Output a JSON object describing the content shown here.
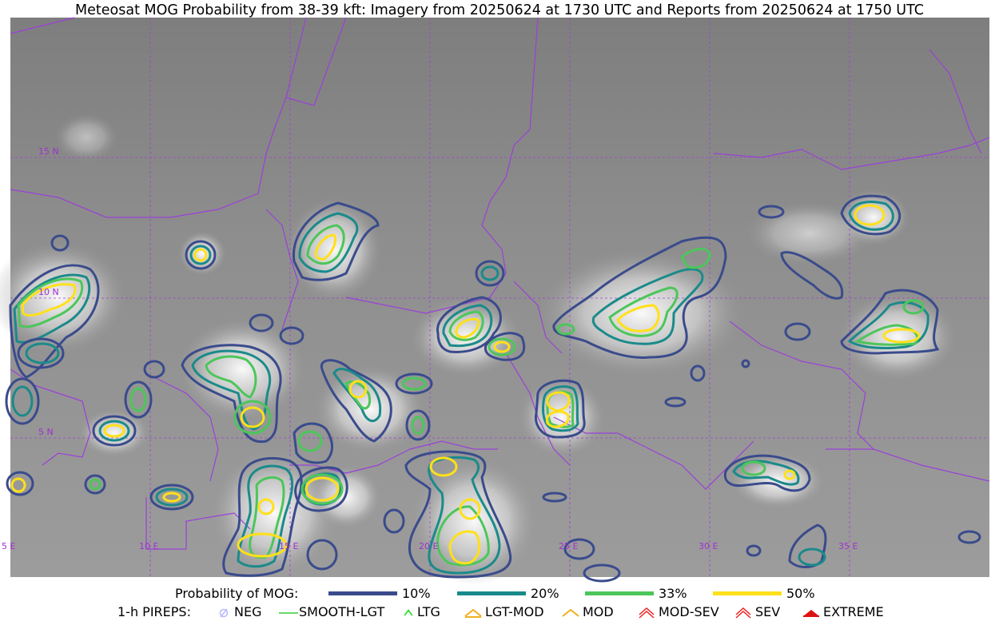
{
  "title": "Meteosat MOG Probability from 38-39 kft: Imagery from 20250624 at 1730 UTC and Reports from 20250624 at 1750 UTC",
  "map": {
    "lat_labels": [
      "15 N",
      "10 N",
      "5 N"
    ],
    "lon_labels": [
      "5 E",
      "10 E",
      "15 E",
      "20 E",
      "25 E",
      "30 E",
      "35 E"
    ],
    "colors": {
      "background": "#8a8a8a",
      "grid": "#a040d0",
      "border": "#9a40d8",
      "p10": "#3a4b8c",
      "p20": "#1b8a8a",
      "p33": "#4cc65a",
      "p50": "#ffe01a"
    }
  },
  "legend": {
    "probability": {
      "label": "Probability of MOG:",
      "items": [
        {
          "label": "10%",
          "color": "#3a4b8c"
        },
        {
          "label": "20%",
          "color": "#1b8a8a"
        },
        {
          "label": "33%",
          "color": "#4cc65a"
        },
        {
          "label": "50%",
          "color": "#ffe01a"
        }
      ]
    },
    "pireps": {
      "label": "1-h PIREPS:",
      "items": [
        {
          "label": "NEG",
          "icon": "neg-icon",
          "color": "#b8b8ff"
        },
        {
          "label": "SMOOTH-LGT",
          "icon": "smooth-lgt-icon",
          "color": "#33cc33"
        },
        {
          "label": "LTG",
          "icon": "ltg-icon",
          "color": "#22dd22"
        },
        {
          "label": "LGT-MOD",
          "icon": "lgt-mod-icon",
          "color": "#f0b020"
        },
        {
          "label": "MOD",
          "icon": "mod-icon",
          "color": "#f0b020"
        },
        {
          "label": "MOD-SEV",
          "icon": "mod-sev-icon",
          "color": "#ee2222"
        },
        {
          "label": "SEV",
          "icon": "sev-icon",
          "color": "#ee2222"
        },
        {
          "label": "EXTREME",
          "icon": "extreme-icon",
          "color": "#dd1111"
        }
      ]
    }
  }
}
